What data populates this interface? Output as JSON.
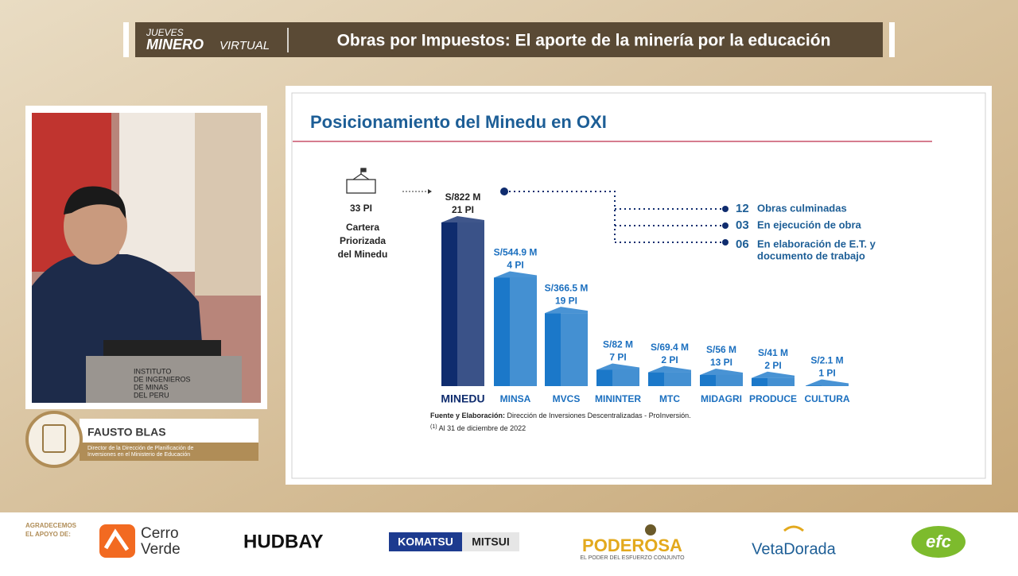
{
  "header": {
    "brand_top": "JUEVES",
    "brand_main": "MINERO",
    "brand_sub": "VIRTUAL",
    "title": "Obras por Impuestos: El aporte de la minería por la educación"
  },
  "speaker": {
    "name": "FAUSTO BLAS",
    "role": [
      "Director de la Dirección de Planificación de",
      "Inversiones en el Ministerio de Educación"
    ],
    "podium": [
      "INSTITUTO",
      "DE INGENIEROS",
      "DE MINAS",
      "DEL PERU"
    ]
  },
  "portfolio": {
    "count": "33 PI",
    "label": [
      "Cartera",
      "Priorizada",
      "del Minedu"
    ]
  },
  "chart_data": {
    "type": "bar",
    "title": "Posicionamiento del Minedu en OXI",
    "categories": [
      "MINEDU",
      "MINSA",
      "MVCS",
      "MININTER",
      "MTC",
      "MIDAGRI",
      "PRODUCE",
      "CULTURA"
    ],
    "values": [
      822,
      544.9,
      366.5,
      82,
      69.4,
      56,
      41,
      2.1
    ],
    "value_labels": [
      "S/822 M",
      "S/544.9 M",
      "S/366.5 M",
      "S/82 M",
      "S/69.4 M",
      "S/56 M",
      "S/41 M",
      "S/2.1 M"
    ],
    "pi_labels": [
      "21 PI",
      "4 PI",
      "19 PI",
      "7 PI",
      "2 PI",
      "13 PI",
      "2 PI",
      "1 PI"
    ],
    "colors": [
      "#0f2c6e",
      "#1b78c9",
      "#1b78c9",
      "#1b78c9",
      "#1b78c9",
      "#1b78c9",
      "#1b78c9",
      "#1b78c9"
    ]
  },
  "breakdown": [
    {
      "count": "12",
      "label": [
        "Obras culminadas"
      ]
    },
    {
      "count": "03",
      "label": [
        "En ejecución de obra"
      ]
    },
    {
      "count": "06",
      "label": [
        "En elaboración de E.T. y",
        "documento de trabajo"
      ]
    }
  ],
  "notes": {
    "source_label": "Fuente y Elaboración:",
    "source": " Dirección de Inversiones Descentralizadas - ProInversión.",
    "footnote_mark": "(1)",
    "footnote": " Al 31 de diciembre de 2022"
  },
  "sponsors": {
    "thanks": [
      "AGRADECEMOS",
      "EL APOYO DE:"
    ],
    "cerro": [
      "Cerro",
      "Verde"
    ],
    "hudbay": "HUDBAY",
    "komatsu": "KOMATSU",
    "mitsui": "MITSUI",
    "poderosa": "PODEROSA",
    "poderosa_sub": "EL PODER DEL ESFUERZO CONJUNTO",
    "veta": "VetaDorada",
    "efc": "efc"
  }
}
